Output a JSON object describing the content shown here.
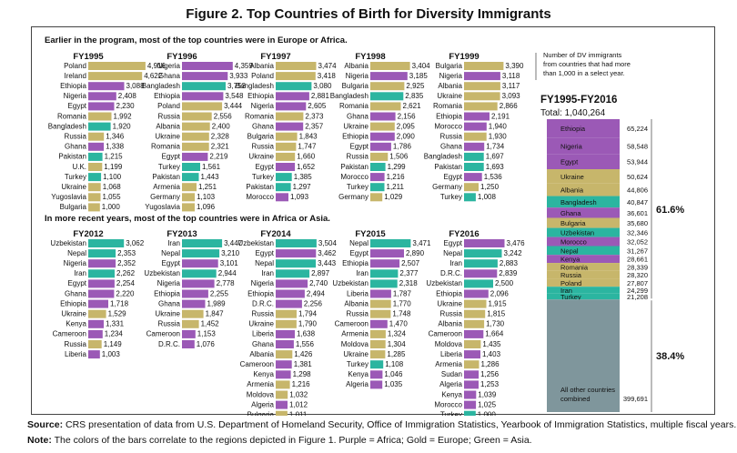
{
  "title": "Figure 2. Top Countries of Birth for Diversity Immigrants",
  "colors": {
    "Africa": "#9b59b6",
    "Europe": "#c7b66b",
    "Asia": "#2bb5a0",
    "Other": "#7f969c",
    "text": "#111111"
  },
  "footnote_source": "CRS presentation of data from U.S. Department of Homeland Security, Office of Immigration Statistics, Yearbook of Immigration Statistics, multiple fiscal years.",
  "footnote_note": "The colors of the bars correlate to the regions depicted in Figure 1. Purple = Africa; Gold = Europe; Green = Asia.",
  "footnote_source_label": "Source:",
  "footnote_note_label": "Note:",
  "chart_data": [
    {
      "type": "bar",
      "section": "Earlier in the program, most of the top countries were in Europe or Africa.",
      "title": "FY1995",
      "categories": [
        "Poland",
        "Ireland",
        "Ethiopia",
        "Nigeria",
        "Egypt",
        "Romania",
        "Bangladesh",
        "Russia",
        "Ghana",
        "Pakistan",
        "U.K.",
        "Turkey",
        "Ukraine",
        "Yugoslavia",
        "Bulgaria"
      ],
      "values": [
        4916,
        4622,
        3088,
        2408,
        2230,
        1992,
        1920,
        1346,
        1338,
        1215,
        1199,
        1100,
        1068,
        1055,
        1000
      ],
      "regions": [
        "Europe",
        "Europe",
        "Africa",
        "Africa",
        "Africa",
        "Europe",
        "Asia",
        "Europe",
        "Africa",
        "Asia",
        "Europe",
        "Asia",
        "Europe",
        "Europe",
        "Europe"
      ]
    },
    {
      "type": "bar",
      "title": "FY1996",
      "categories": [
        "Nigeria",
        "Ghana",
        "Bangladesh",
        "Ethiopia",
        "Poland",
        "Russia",
        "Albania",
        "Ukraine",
        "Romania",
        "Egypt",
        "Turkey",
        "Pakistan",
        "Armenia",
        "Germany",
        "Yugoslavia"
      ],
      "values": [
        4359,
        3933,
        3753,
        3548,
        3444,
        2556,
        2400,
        2328,
        2321,
        2219,
        1561,
        1443,
        1251,
        1103,
        1096
      ],
      "regions": [
        "Africa",
        "Africa",
        "Asia",
        "Africa",
        "Europe",
        "Europe",
        "Europe",
        "Europe",
        "Europe",
        "Africa",
        "Asia",
        "Asia",
        "Europe",
        "Europe",
        "Europe"
      ]
    },
    {
      "type": "bar",
      "title": "FY1997",
      "categories": [
        "Albania",
        "Poland",
        "Bangladesh",
        "Ethiopia",
        "Nigeria",
        "Romania",
        "Ghana",
        "Bulgaria",
        "Russia",
        "Ukraine",
        "Egypt",
        "Turkey",
        "Pakistan",
        "Morocco"
      ],
      "values": [
        3474,
        3418,
        3080,
        2881,
        2605,
        2373,
        2357,
        1843,
        1747,
        1660,
        1652,
        1385,
        1297,
        1093
      ],
      "regions": [
        "Europe",
        "Europe",
        "Asia",
        "Africa",
        "Africa",
        "Europe",
        "Africa",
        "Europe",
        "Europe",
        "Europe",
        "Africa",
        "Asia",
        "Asia",
        "Africa"
      ]
    },
    {
      "type": "bar",
      "title": "FY1998",
      "categories": [
        "Albania",
        "Nigeria",
        "Bulgaria",
        "Bangladesh",
        "Romania",
        "Ghana",
        "Ukraine",
        "Ethiopia",
        "Egypt",
        "Russia",
        "Pakistan",
        "Morocco",
        "Turkey",
        "Germany"
      ],
      "values": [
        3404,
        3185,
        2925,
        2835,
        2621,
        2156,
        2095,
        2090,
        1786,
        1506,
        1299,
        1216,
        1211,
        1029
      ],
      "regions": [
        "Europe",
        "Africa",
        "Europe",
        "Asia",
        "Europe",
        "Africa",
        "Europe",
        "Africa",
        "Africa",
        "Europe",
        "Asia",
        "Africa",
        "Asia",
        "Europe"
      ]
    },
    {
      "type": "bar",
      "title": "FY1999",
      "categories": [
        "Bulgaria",
        "Nigeria",
        "Albania",
        "Ukraine",
        "Romania",
        "Ethiopia",
        "Morocco",
        "Russia",
        "Ghana",
        "Bangladesh",
        "Pakistan",
        "Egypt",
        "Germany",
        "Turkey"
      ],
      "values": [
        3390,
        3118,
        3117,
        3093,
        2866,
        2191,
        1940,
        1930,
        1734,
        1697,
        1693,
        1536,
        1250,
        1008
      ],
      "regions": [
        "Europe",
        "Africa",
        "Europe",
        "Europe",
        "Europe",
        "Africa",
        "Africa",
        "Europe",
        "Africa",
        "Asia",
        "Asia",
        "Africa",
        "Europe",
        "Asia"
      ]
    },
    {
      "type": "bar",
      "section": "In more recent years, most of the top countries were in Africa or Asia.",
      "title": "FY2012",
      "categories": [
        "Uzbekistan",
        "Nepal",
        "Nigeria",
        "Iran",
        "Egypt",
        "Ghana",
        "Ethiopia",
        "Ukraine",
        "Kenya",
        "Cameroon",
        "Russia",
        "Liberia"
      ],
      "values": [
        3062,
        2353,
        2352,
        2262,
        2254,
        2220,
        1718,
        1529,
        1331,
        1234,
        1149,
        1003
      ],
      "regions": [
        "Asia",
        "Asia",
        "Africa",
        "Asia",
        "Africa",
        "Africa",
        "Africa",
        "Europe",
        "Africa",
        "Africa",
        "Europe",
        "Africa"
      ]
    },
    {
      "type": "bar",
      "title": "FY2013",
      "categories": [
        "Iran",
        "Nepal",
        "Egypt",
        "Uzbekistan",
        "Nigeria",
        "Ethiopia",
        "Ghana",
        "Ukraine",
        "Russia",
        "Cameroon",
        "D.R.C."
      ],
      "values": [
        3447,
        3210,
        3101,
        2944,
        2778,
        2255,
        1989,
        1847,
        1452,
        1153,
        1076
      ],
      "regions": [
        "Asia",
        "Asia",
        "Africa",
        "Asia",
        "Africa",
        "Africa",
        "Africa",
        "Europe",
        "Europe",
        "Africa",
        "Africa"
      ]
    },
    {
      "type": "bar",
      "title": "FY2014",
      "categories": [
        "Uzbekistan",
        "Egypt",
        "Nepal",
        "Iran",
        "Nigeria",
        "Ethiopia",
        "D.R.C.",
        "Russia",
        "Ukraine",
        "Liberia",
        "Ghana",
        "Albania",
        "Cameroon",
        "Kenya",
        "Armenia",
        "Moldova",
        "Algeria",
        "Bulgaria"
      ],
      "values": [
        3504,
        3462,
        3443,
        2897,
        2740,
        2494,
        2256,
        1794,
        1790,
        1638,
        1556,
        1426,
        1381,
        1298,
        1216,
        1032,
        1012,
        1011
      ],
      "regions": [
        "Asia",
        "Africa",
        "Asia",
        "Asia",
        "Africa",
        "Africa",
        "Africa",
        "Europe",
        "Europe",
        "Africa",
        "Africa",
        "Europe",
        "Africa",
        "Africa",
        "Europe",
        "Europe",
        "Africa",
        "Europe"
      ]
    },
    {
      "type": "bar",
      "title": "FY2015",
      "categories": [
        "Nepal",
        "Egypt",
        "Ethiopia",
        "Iran",
        "Uzbekistan",
        "Liberia",
        "Albania",
        "Russia",
        "Cameroon",
        "Armenia",
        "Moldova",
        "Ukraine",
        "Turkey",
        "Kenya",
        "Algeria"
      ],
      "values": [
        3471,
        2890,
        2507,
        2377,
        2318,
        1787,
        1770,
        1748,
        1470,
        1324,
        1304,
        1285,
        1108,
        1046,
        1035
      ],
      "regions": [
        "Asia",
        "Africa",
        "Africa",
        "Asia",
        "Asia",
        "Africa",
        "Europe",
        "Europe",
        "Africa",
        "Europe",
        "Europe",
        "Europe",
        "Asia",
        "Africa",
        "Africa"
      ]
    },
    {
      "type": "bar",
      "title": "FY2016",
      "categories": [
        "Egypt",
        "Nepal",
        "Iran",
        "D.R.C.",
        "Uzbekistan",
        "Ethiopia",
        "Ukraine",
        "Russia",
        "Albania",
        "Cameroon",
        "Moldova",
        "Liberia",
        "Armenia",
        "Sudan",
        "Algeria",
        "Kenya",
        "Morocco",
        "Turkey"
      ],
      "values": [
        3476,
        3242,
        2883,
        2839,
        2500,
        2096,
        1915,
        1815,
        1730,
        1664,
        1435,
        1403,
        1286,
        1256,
        1253,
        1039,
        1025,
        1000
      ],
      "regions": [
        "Africa",
        "Asia",
        "Asia",
        "Africa",
        "Asia",
        "Africa",
        "Europe",
        "Europe",
        "Europe",
        "Africa",
        "Europe",
        "Africa",
        "Europe",
        "Africa",
        "Africa",
        "Africa",
        "Africa",
        "Asia"
      ]
    },
    {
      "type": "bar",
      "stacked": true,
      "title": "FY1995-FY2016",
      "subtitle": "Total: 1,040,264",
      "legend_note": "Number of DV immigrants from countries that had more than 1,000 in a select year.",
      "categories": [
        "Ethiopia",
        "Nigeria",
        "Egypt",
        "Ukraine",
        "Albania",
        "Bangladesh",
        "Ghana",
        "Bulgaria",
        "Uzbekistan",
        "Morocco",
        "Nepal",
        "Kenya",
        "Romania",
        "Russia",
        "Poland",
        "Iran",
        "Turkey",
        "All other countries combined"
      ],
      "values": [
        65224,
        58548,
        53944,
        50624,
        44806,
        40847,
        36601,
        35680,
        32346,
        32052,
        31267,
        28661,
        28339,
        28320,
        27807,
        24299,
        21208,
        399691
      ],
      "regions": [
        "Africa",
        "Africa",
        "Africa",
        "Europe",
        "Europe",
        "Asia",
        "Africa",
        "Europe",
        "Asia",
        "Africa",
        "Asia",
        "Africa",
        "Europe",
        "Europe",
        "Europe",
        "Asia",
        "Asia",
        "Other"
      ],
      "annotations": [
        "61.6%",
        "38.4%"
      ]
    }
  ]
}
